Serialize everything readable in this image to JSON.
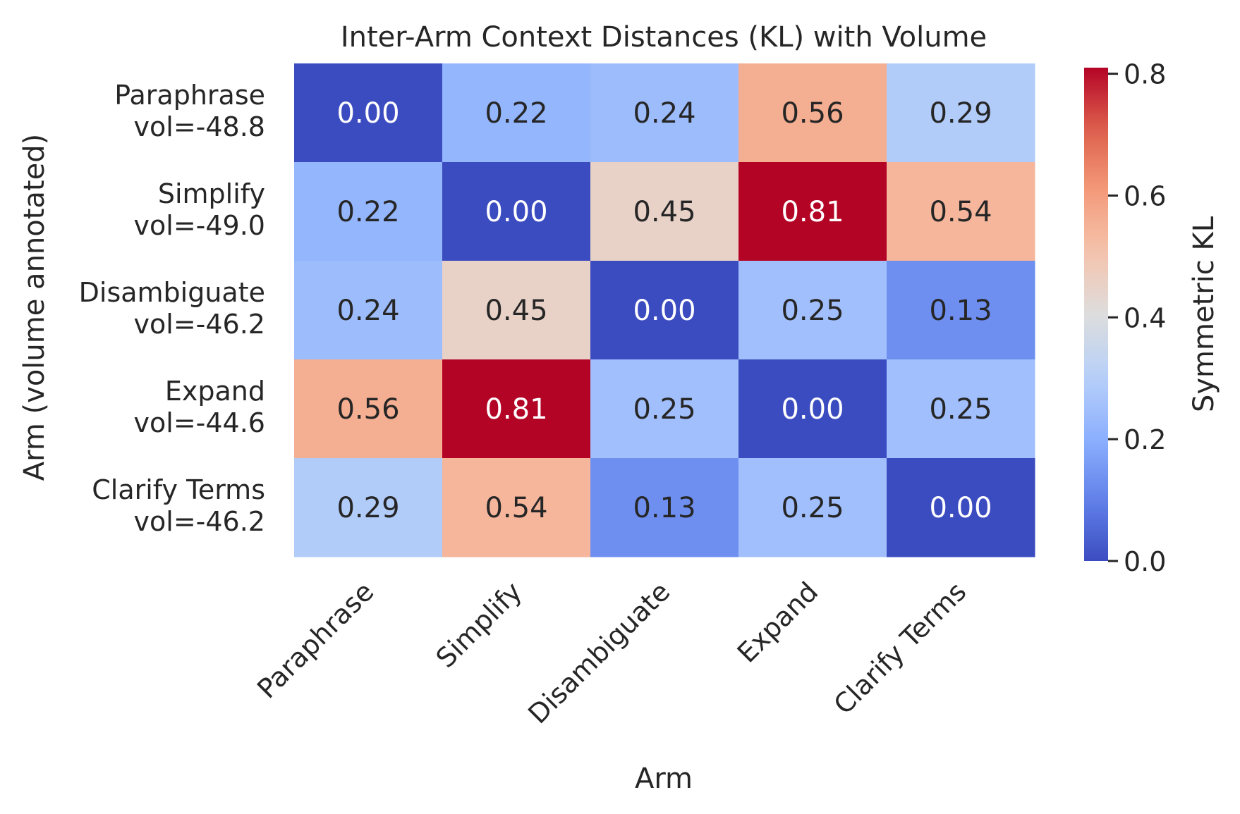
{
  "chart_data": {
    "type": "heatmap",
    "title": "Inter-Arm Context Distances (KL) with Volume",
    "xlabel": "Arm",
    "ylabel": "Arm (volume annotated)",
    "x_categories": [
      "Paraphrase",
      "Simplify",
      "Disambiguate",
      "Expand",
      "Clarify Terms"
    ],
    "y_categories": [
      [
        "Paraphrase",
        "vol=-48.8"
      ],
      [
        "Simplify",
        "vol=-49.0"
      ],
      [
        "Disambiguate",
        "vol=-46.2"
      ],
      [
        "Expand",
        "vol=-44.6"
      ],
      [
        "Clarify Terms",
        "vol=-46.2"
      ]
    ],
    "values": [
      [
        0.0,
        0.22,
        0.24,
        0.56,
        0.29
      ],
      [
        0.22,
        0.0,
        0.45,
        0.81,
        0.54
      ],
      [
        0.24,
        0.45,
        0.0,
        0.25,
        0.13
      ],
      [
        0.56,
        0.81,
        0.25,
        0.0,
        0.25
      ],
      [
        0.29,
        0.54,
        0.13,
        0.25,
        0.0
      ]
    ],
    "cell_labels": [
      [
        "0.00",
        "0.22",
        "0.24",
        "0.56",
        "0.29"
      ],
      [
        "0.22",
        "0.00",
        "0.45",
        "0.81",
        "0.54"
      ],
      [
        "0.24",
        "0.45",
        "0.00",
        "0.25",
        "0.13"
      ],
      [
        "0.56",
        "0.81",
        "0.25",
        "0.00",
        "0.25"
      ],
      [
        "0.29",
        "0.54",
        "0.13",
        "0.25",
        "0.00"
      ]
    ],
    "colorbar": {
      "label": "Symmetric KL",
      "range": [
        0.0,
        0.81
      ],
      "ticks": [
        0.0,
        0.2,
        0.4,
        0.6,
        0.8
      ],
      "tick_labels": [
        "0.0",
        "0.2",
        "0.4",
        "0.6",
        "0.8"
      ],
      "colormap": "coolwarm"
    },
    "grid": false
  }
}
